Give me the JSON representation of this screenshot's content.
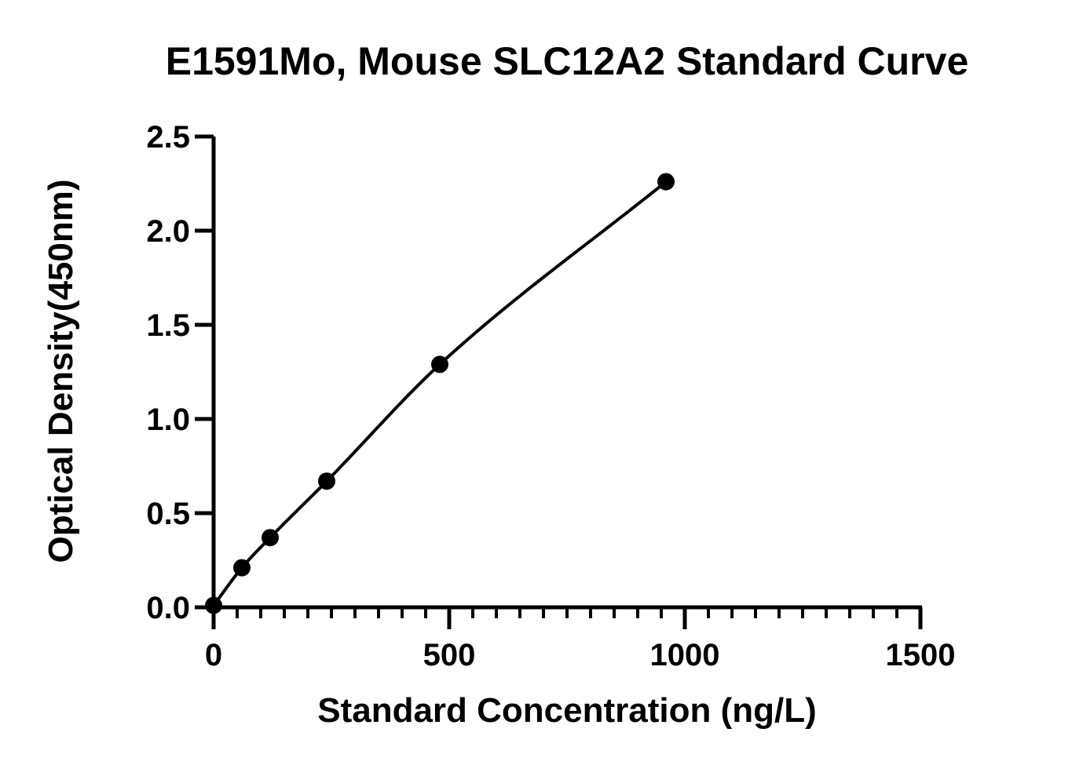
{
  "chart_data": {
    "type": "scatter",
    "title": "E1591Mo, Mouse SLC12A2 Standard Curve",
    "xlabel": "Standard Concentration (ng/L)",
    "ylabel": "Optical Density(450nm)",
    "xlim": [
      0,
      1500
    ],
    "ylim": [
      0,
      2.5
    ],
    "x_ticks": [
      "0",
      "500",
      "1000",
      "1500"
    ],
    "y_ticks": [
      "0.0",
      "0.5",
      "1.0",
      "1.5",
      "2.0",
      "2.5"
    ],
    "x_minor_step": 50,
    "grid": false,
    "legend": "none",
    "fit_curve": true,
    "series": [
      {
        "x": [
          0,
          60,
          120,
          240,
          480,
          960
        ],
        "y": [
          0.01,
          0.21,
          0.37,
          0.67,
          1.29,
          2.26
        ]
      }
    ],
    "colors": {
      "marker": "#000000",
      "line": "#000000",
      "axis": "#000000"
    }
  }
}
